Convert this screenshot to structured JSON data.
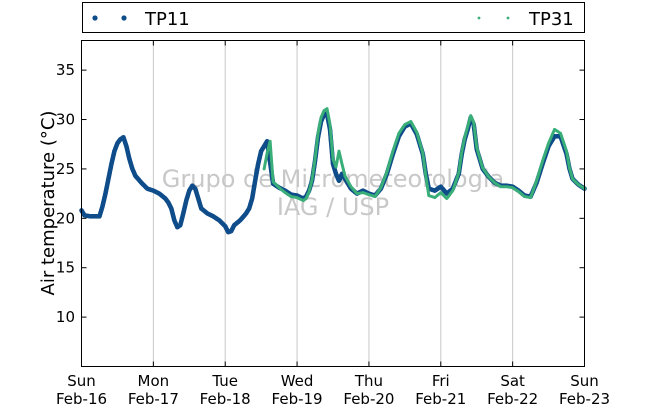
{
  "chart_data": {
    "type": "scatter",
    "title": "",
    "xlabel": "",
    "ylabel": "Air temperature (°C)",
    "ylim": [
      5,
      38
    ],
    "yticks": [
      10,
      15,
      20,
      25,
      30,
      35
    ],
    "xlim": [
      "2014-02-16 00:00",
      "2014-02-23 00:00"
    ],
    "xticks": [
      {
        "day": "Sun",
        "date": "Feb-16"
      },
      {
        "day": "Mon",
        "date": "Feb-17"
      },
      {
        "day": "Tue",
        "date": "Feb-18"
      },
      {
        "day": "Wed",
        "date": "Feb-19"
      },
      {
        "day": "Thu",
        "date": "Feb-20"
      },
      {
        "day": "Fri",
        "date": "Feb-21"
      },
      {
        "day": "Sat",
        "date": "Feb-22"
      },
      {
        "day": "Sun",
        "date": "Feb-23"
      }
    ],
    "grid": "vertical",
    "legend_position": "top",
    "watermark": [
      "Grupo de Micrometeorologia",
      "IAG / USP"
    ],
    "series": [
      {
        "name": "TP11",
        "color": "#0f4c8a",
        "marker": "large-dot",
        "points": [
          [
            "2014-02-16 00:00",
            20.8
          ],
          [
            "2014-02-16 01:00",
            20.3
          ],
          [
            "2014-02-16 03:00",
            20.2
          ],
          [
            "2014-02-16 05:00",
            20.2
          ],
          [
            "2014-02-16 06:00",
            20.2
          ],
          [
            "2014-02-16 07:00",
            21.2
          ],
          [
            "2014-02-16 08:00",
            22.5
          ],
          [
            "2014-02-16 09:00",
            24.0
          ],
          [
            "2014-02-16 10:00",
            25.5
          ],
          [
            "2014-02-16 11:00",
            26.8
          ],
          [
            "2014-02-16 12:00",
            27.6
          ],
          [
            "2014-02-16 13:00",
            28.0
          ],
          [
            "2014-02-16 14:00",
            28.2
          ],
          [
            "2014-02-16 15:00",
            27.3
          ],
          [
            "2014-02-16 16:00",
            26.0
          ],
          [
            "2014-02-16 17:00",
            25.0
          ],
          [
            "2014-02-16 18:00",
            24.3
          ],
          [
            "2014-02-16 20:00",
            23.6
          ],
          [
            "2014-02-16 22:00",
            23.0
          ],
          [
            "2014-02-17 00:00",
            22.8
          ],
          [
            "2014-02-17 02:00",
            22.5
          ],
          [
            "2014-02-17 04:00",
            22.0
          ],
          [
            "2014-02-17 05:00",
            21.6
          ],
          [
            "2014-02-17 06:00",
            21.0
          ],
          [
            "2014-02-17 07:00",
            19.8
          ],
          [
            "2014-02-17 08:00",
            19.1
          ],
          [
            "2014-02-17 09:00",
            19.3
          ],
          [
            "2014-02-17 10:00",
            20.5
          ],
          [
            "2014-02-17 11:00",
            21.8
          ],
          [
            "2014-02-17 12:00",
            22.8
          ],
          [
            "2014-02-17 13:00",
            23.3
          ],
          [
            "2014-02-17 14:00",
            23.0
          ],
          [
            "2014-02-17 15:00",
            22.0
          ],
          [
            "2014-02-17 16:00",
            21.0
          ],
          [
            "2014-02-17 18:00",
            20.5
          ],
          [
            "2014-02-17 20:00",
            20.2
          ],
          [
            "2014-02-17 22:00",
            19.8
          ],
          [
            "2014-02-18 00:00",
            19.2
          ],
          [
            "2014-02-18 01:00",
            18.6
          ],
          [
            "2014-02-18 02:00",
            18.7
          ],
          [
            "2014-02-18 03:00",
            19.3
          ],
          [
            "2014-02-18 05:00",
            19.8
          ],
          [
            "2014-02-18 07:00",
            20.5
          ],
          [
            "2014-02-18 08:00",
            21.0
          ],
          [
            "2014-02-18 09:00",
            22.0
          ],
          [
            "2014-02-18 10:00",
            23.8
          ],
          [
            "2014-02-18 11:00",
            25.5
          ],
          [
            "2014-02-18 12:00",
            26.8
          ],
          [
            "2014-02-18 13:00",
            27.3
          ],
          [
            "2014-02-18 14:00",
            27.8
          ],
          [
            "2014-02-18 16:00",
            23.5
          ],
          [
            "2014-02-18 18:00",
            23.1
          ],
          [
            "2014-02-18 20:00",
            22.8
          ],
          [
            "2014-02-18 22:00",
            22.4
          ],
          [
            "2014-02-19 00:00",
            22.3
          ],
          [
            "2014-02-19 02:00",
            22.0
          ],
          [
            "2014-02-19 03:00",
            22.2
          ],
          [
            "2014-02-19 04:00",
            22.8
          ],
          [
            "2014-02-19 05:00",
            23.8
          ],
          [
            "2014-02-19 06:00",
            25.8
          ],
          [
            "2014-02-19 07:00",
            28.2
          ],
          [
            "2014-02-19 08:00",
            29.8
          ],
          [
            "2014-02-19 09:00",
            30.5
          ],
          [
            "2014-02-19 10:00",
            30.6
          ],
          [
            "2014-02-19 11:00",
            29.0
          ],
          [
            "2014-02-19 12:00",
            25.5
          ],
          [
            "2014-02-19 13:00",
            24.5
          ],
          [
            "2014-02-19 14:00",
            23.8
          ],
          [
            "2014-02-19 15:00",
            24.5
          ],
          [
            "2014-02-19 16:00",
            24.0
          ],
          [
            "2014-02-19 18:00",
            23.0
          ],
          [
            "2014-02-19 20:00",
            22.5
          ],
          [
            "2014-02-19 22:00",
            22.8
          ],
          [
            "2014-02-20 00:00",
            22.5
          ],
          [
            "2014-02-20 02:00",
            22.3
          ],
          [
            "2014-02-20 04:00",
            23.0
          ],
          [
            "2014-02-20 06:00",
            24.5
          ],
          [
            "2014-02-20 08:00",
            26.5
          ],
          [
            "2014-02-20 10:00",
            28.3
          ],
          [
            "2014-02-20 12:00",
            29.3
          ],
          [
            "2014-02-20 14:00",
            29.6
          ],
          [
            "2014-02-20 16:00",
            28.5
          ],
          [
            "2014-02-20 18:00",
            26.5
          ],
          [
            "2014-02-20 19:00",
            24.5
          ],
          [
            "2014-02-20 20:00",
            23.0
          ],
          [
            "2014-02-20 22:00",
            22.8
          ],
          [
            "2014-02-21 00:00",
            23.2
          ],
          [
            "2014-02-21 02:00",
            22.5
          ],
          [
            "2014-02-21 04:00",
            23.0
          ],
          [
            "2014-02-21 06:00",
            24.5
          ],
          [
            "2014-02-21 07:00",
            26.5
          ],
          [
            "2014-02-21 08:00",
            28.0
          ],
          [
            "2014-02-21 09:00",
            29.0
          ],
          [
            "2014-02-21 10:00",
            30.2
          ],
          [
            "2014-02-21 11:00",
            29.5
          ],
          [
            "2014-02-21 12:00",
            27.0
          ],
          [
            "2014-02-21 13:00",
            26.0
          ],
          [
            "2014-02-21 14:00",
            25.0
          ],
          [
            "2014-02-21 16:00",
            24.2
          ],
          [
            "2014-02-21 18:00",
            23.6
          ],
          [
            "2014-02-21 20:00",
            23.3
          ],
          [
            "2014-02-21 22:00",
            23.3
          ],
          [
            "2014-02-22 00:00",
            23.2
          ],
          [
            "2014-02-22 02:00",
            22.8
          ],
          [
            "2014-02-22 04:00",
            22.3
          ],
          [
            "2014-02-22 06:00",
            22.2
          ],
          [
            "2014-02-22 08:00",
            23.6
          ],
          [
            "2014-02-22 10:00",
            25.5
          ],
          [
            "2014-02-22 12:00",
            27.3
          ],
          [
            "2014-02-22 14:00",
            28.3
          ],
          [
            "2014-02-22 16:00",
            28.3
          ],
          [
            "2014-02-22 18:00",
            26.5
          ],
          [
            "2014-02-22 19:00",
            25.0
          ],
          [
            "2014-02-22 20:00",
            24.0
          ],
          [
            "2014-02-22 22:00",
            23.4
          ],
          [
            "2014-02-23 00:00",
            23.0
          ]
        ]
      },
      {
        "name": "TP31",
        "color": "#3aae78",
        "marker": "small-dot",
        "points": [
          [
            "2014-02-18 13:00",
            25.0
          ],
          [
            "2014-02-18 14:00",
            26.6
          ],
          [
            "2014-02-18 15:00",
            27.8
          ],
          [
            "2014-02-18 16:00",
            23.7
          ],
          [
            "2014-02-18 18:00",
            23.1
          ],
          [
            "2014-02-18 20:00",
            22.6
          ],
          [
            "2014-02-18 22:00",
            22.2
          ],
          [
            "2014-02-19 00:00",
            22.1
          ],
          [
            "2014-02-19 02:00",
            21.8
          ],
          [
            "2014-02-19 03:00",
            22.0
          ],
          [
            "2014-02-19 04:00",
            22.7
          ],
          [
            "2014-02-19 05:00",
            23.9
          ],
          [
            "2014-02-19 06:00",
            26.0
          ],
          [
            "2014-02-19 07:00",
            28.6
          ],
          [
            "2014-02-19 08:00",
            30.2
          ],
          [
            "2014-02-19 09:00",
            30.9
          ],
          [
            "2014-02-19 10:00",
            31.1
          ],
          [
            "2014-02-19 11:00",
            29.5
          ],
          [
            "2014-02-19 12:00",
            26.0
          ],
          [
            "2014-02-19 13:00",
            25.2
          ],
          [
            "2014-02-19 14:00",
            26.8
          ],
          [
            "2014-02-19 15:00",
            25.5
          ],
          [
            "2014-02-19 16:00",
            24.3
          ],
          [
            "2014-02-19 18:00",
            23.2
          ],
          [
            "2014-02-19 20:00",
            22.5
          ],
          [
            "2014-02-19 22:00",
            22.6
          ],
          [
            "2014-02-20 00:00",
            22.4
          ],
          [
            "2014-02-20 02:00",
            22.2
          ],
          [
            "2014-02-20 04:00",
            23.1
          ],
          [
            "2014-02-20 06:00",
            24.7
          ],
          [
            "2014-02-20 08:00",
            26.8
          ],
          [
            "2014-02-20 10:00",
            28.6
          ],
          [
            "2014-02-20 12:00",
            29.5
          ],
          [
            "2014-02-20 14:00",
            29.8
          ],
          [
            "2014-02-20 16:00",
            28.7
          ],
          [
            "2014-02-20 18:00",
            26.6
          ],
          [
            "2014-02-20 19:00",
            24.3
          ],
          [
            "2014-02-20 20:00",
            22.3
          ],
          [
            "2014-02-20 22:00",
            22.1
          ],
          [
            "2014-02-21 00:00",
            22.6
          ],
          [
            "2014-02-21 02:00",
            22.0
          ],
          [
            "2014-02-21 04:00",
            22.8
          ],
          [
            "2014-02-21 06:00",
            24.6
          ],
          [
            "2014-02-21 07:00",
            26.7
          ],
          [
            "2014-02-21 08:00",
            28.2
          ],
          [
            "2014-02-21 09:00",
            29.3
          ],
          [
            "2014-02-21 10:00",
            30.4
          ],
          [
            "2014-02-21 11:00",
            29.7
          ],
          [
            "2014-02-21 12:00",
            27.2
          ],
          [
            "2014-02-21 13:00",
            26.1
          ],
          [
            "2014-02-21 14:00",
            25.1
          ],
          [
            "2014-02-21 16:00",
            24.2
          ],
          [
            "2014-02-21 18:00",
            23.6
          ],
          [
            "2014-02-21 20:00",
            23.2
          ],
          [
            "2014-02-21 22:00",
            23.2
          ],
          [
            "2014-02-22 00:00",
            23.1
          ],
          [
            "2014-02-22 02:00",
            22.7
          ],
          [
            "2014-02-22 04:00",
            22.2
          ],
          [
            "2014-02-22 06:00",
            22.1
          ],
          [
            "2014-02-22 08:00",
            23.8
          ],
          [
            "2014-02-22 10:00",
            25.8
          ],
          [
            "2014-02-22 12:00",
            27.6
          ],
          [
            "2014-02-22 14:00",
            29.0
          ],
          [
            "2014-02-22 16:00",
            28.6
          ],
          [
            "2014-02-22 18:00",
            26.8
          ],
          [
            "2014-02-22 19:00",
            25.1
          ],
          [
            "2014-02-22 20:00",
            24.0
          ],
          [
            "2014-02-22 22:00",
            23.4
          ],
          [
            "2014-02-23 00:00",
            23.0
          ]
        ]
      }
    ]
  }
}
